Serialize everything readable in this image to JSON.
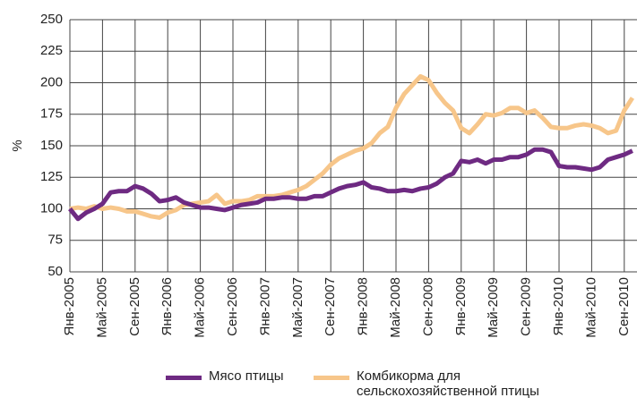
{
  "chart_data": {
    "type": "line",
    "ylabel": "%",
    "categories": [
      "Янв-2005",
      null,
      null,
      null,
      "Май-2005",
      null,
      null,
      null,
      "Сен-2005",
      null,
      null,
      null,
      "Янв-2006",
      null,
      null,
      null,
      "Май-2006",
      null,
      null,
      null,
      "Сен-2006",
      null,
      null,
      null,
      "Янв-2007",
      null,
      null,
      null,
      "Май-2007",
      null,
      null,
      null,
      "Сен-2007",
      null,
      null,
      null,
      "Янв-2008",
      null,
      null,
      null,
      "Май-2008",
      null,
      null,
      null,
      "Сен-2008",
      null,
      null,
      null,
      "Янв-2009",
      null,
      null,
      null,
      "Май-2009",
      null,
      null,
      null,
      "Сен-2009",
      null,
      null,
      null,
      "Янв-2010",
      null,
      null,
      null,
      "Май-2010",
      null,
      null,
      null,
      "Сен-2010",
      null
    ],
    "series": [
      {
        "name": "Мясо птицы",
        "color": "#6e2a82",
        "values": [
          100,
          92,
          97,
          100,
          104,
          113,
          114,
          114,
          118,
          116,
          112,
          106,
          107,
          109,
          105,
          103,
          101,
          101,
          100,
          99,
          101,
          103,
          104,
          105,
          108,
          108,
          109,
          109,
          108,
          108,
          110,
          110,
          113,
          116,
          118,
          119,
          121,
          117,
          116,
          114,
          114,
          115,
          114,
          116,
          117,
          120,
          125,
          128,
          138,
          137,
          139,
          136,
          139,
          139,
          141,
          141,
          143,
          147,
          147,
          145,
          134,
          133,
          133,
          132,
          131,
          133,
          139,
          141,
          143,
          146
        ]
      },
      {
        "name": "Комбикорма для сельскохозяйственной птицы",
        "color": "#f7c68a",
        "values": [
          100,
          101,
          100,
          102,
          100,
          101,
          100,
          98,
          98,
          96,
          94,
          93,
          97,
          99,
          103,
          104,
          105,
          106,
          111,
          104,
          106,
          106,
          107,
          110,
          110,
          110,
          111,
          113,
          115,
          118,
          123,
          128,
          135,
          140,
          143,
          146,
          148,
          152,
          160,
          165,
          180,
          191,
          198,
          205,
          202,
          192,
          184,
          178,
          164,
          160,
          167,
          175,
          174,
          176,
          180,
          180,
          176,
          178,
          172,
          165,
          164,
          164,
          166,
          167,
          166,
          164,
          160,
          162,
          178,
          188
        ]
      }
    ],
    "ylim": [
      50,
      250
    ],
    "yticks": [
      50,
      75,
      100,
      125,
      150,
      175,
      200,
      225,
      250
    ],
    "grid": true
  }
}
